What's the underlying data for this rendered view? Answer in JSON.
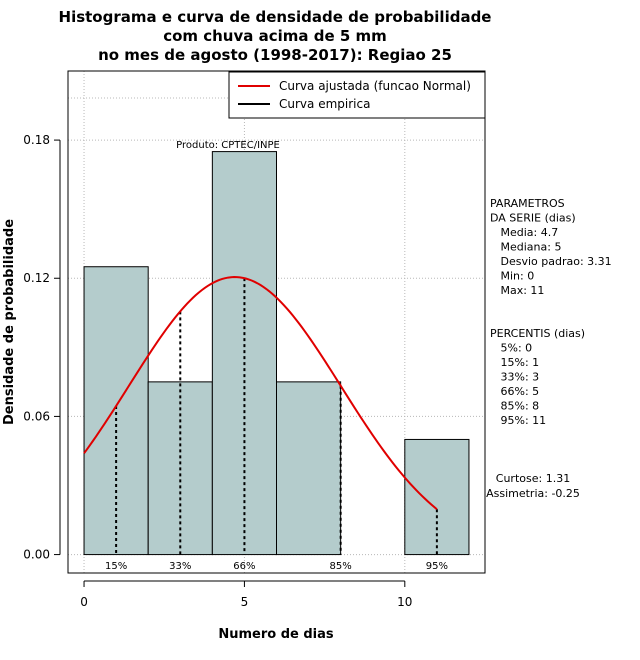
{
  "chart_data": {
    "type": "bar",
    "title_lines": [
      "Histograma e curva de densidade de probabilidade",
      "com chuva acima de 5 mm",
      "no mes de agosto (1998-2017): Regiao 25"
    ],
    "xlabel": "Numero de dias",
    "ylabel": "Densidade de probabilidade",
    "xlim": [
      -0.5,
      12.5
    ],
    "ylim": [
      -0.008,
      0.21
    ],
    "xticks": [
      0,
      5,
      10
    ],
    "yticks": [
      0.0,
      0.06,
      0.12,
      0.18
    ],
    "ytick_labels": [
      "0.00",
      "0.06",
      "0.12",
      "0.18"
    ],
    "grid": true,
    "legend_position": "top-right",
    "bins": [
      {
        "x0": 0,
        "x1": 2,
        "density": 0.125
      },
      {
        "x0": 2,
        "x1": 4,
        "density": 0.075
      },
      {
        "x0": 4,
        "x1": 6,
        "density": 0.175
      },
      {
        "x0": 6,
        "x1": 8,
        "density": 0.075
      },
      {
        "x0": 8,
        "x1": 10,
        "density": 0.0
      },
      {
        "x0": 10,
        "x1": 12,
        "density": 0.05
      }
    ],
    "series": [
      {
        "name": "Curva ajustada (funcao Normal)",
        "color": "#e00000",
        "type": "normal_fit",
        "mean": 4.7,
        "sd": 3.31,
        "x_range": [
          0,
          11
        ]
      },
      {
        "name": "Curva empirica",
        "color": "#000000",
        "type": "line"
      }
    ],
    "percentile_lines": [
      {
        "label": "15%",
        "x": 1
      },
      {
        "label": "33%",
        "x": 3
      },
      {
        "label": "66%",
        "x": 5
      },
      {
        "label": "85%",
        "x": 8
      },
      {
        "label": "95%",
        "x": 11
      }
    ],
    "annotation": "Produto: CPTEC/INPE",
    "bar_color": "#b4cccc"
  },
  "side_panel": {
    "params_lines": [
      "PARAMETROS",
      "DA SERIE (dias)",
      "   Media: 4.7",
      "   Mediana: 5",
      "   Desvio padrao: 3.31",
      "   Min: 0",
      "   Max: 11"
    ],
    "percentis_lines": [
      "PERCENTIS (dias)",
      "   5%: 0",
      "   15%: 1",
      "   33%: 3",
      "   66%: 5",
      "   85%: 8",
      "   95%: 11"
    ],
    "curtose": "Curtose: 1.31",
    "assimetria": "Assimetria: -0.25"
  }
}
